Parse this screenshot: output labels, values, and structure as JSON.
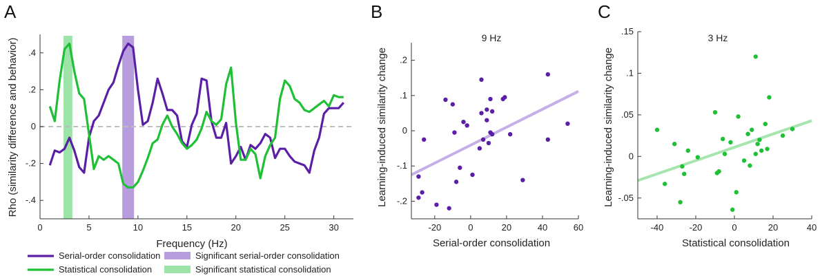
{
  "panels": {
    "a": {
      "letter": "A"
    },
    "b": {
      "letter": "B"
    },
    "c": {
      "letter": "C"
    }
  },
  "colors": {
    "serial": "#5b1fa6",
    "statistical": "#1fbf36",
    "serial_band": "#b79cde",
    "statistical_band": "#9be3a6",
    "serial_fit": "#c5b0e6",
    "statistical_fit": "#a6e6ae",
    "zero_line": "#bdbdbd"
  },
  "chart_data": [
    {
      "type": "line",
      "xlabel": "Frequency (Hz)",
      "ylabel": "Rho (similarity difference and behavior)",
      "xlim": [
        0,
        32
      ],
      "ylim": [
        -0.5,
        0.5
      ],
      "xticks": [
        0,
        5,
        10,
        15,
        20,
        25,
        30
      ],
      "xtick_labels": [
        "0",
        "5",
        "10",
        "15",
        "20",
        "25",
        "30"
      ],
      "yticks": [
        -0.4,
        -0.2,
        0,
        0.2,
        0.4
      ],
      "ytick_labels": [
        "-.4",
        "-.2",
        "0",
        ".2",
        ".4"
      ],
      "zero_line": true,
      "bands": [
        {
          "name": "Significant serial-order consolidation",
          "x0": 8.4,
          "x1": 9.6,
          "color": "#b79cde"
        },
        {
          "name": "Significant statistical consolidation",
          "x0": 2.4,
          "x1": 3.3,
          "color": "#9be3a6"
        }
      ],
      "series": [
        {
          "name": "Serial-order consolidation",
          "color": "#5b1fa6",
          "x": [
            1,
            1.5,
            2,
            2.5,
            3,
            3.5,
            4,
            4.5,
            5,
            5.5,
            6,
            6.5,
            7,
            7.5,
            8,
            8.5,
            9,
            9.5,
            10,
            10.5,
            11,
            11.5,
            12,
            12.5,
            13,
            13.5,
            14,
            14.5,
            15,
            15.5,
            16,
            16.5,
            17,
            17.5,
            18,
            18.5,
            19,
            19.5,
            20,
            20.5,
            21,
            21.5,
            22,
            22.5,
            23,
            23.5,
            24,
            24.5,
            25,
            25.5,
            26,
            26.5,
            27,
            27.5,
            28,
            28.5,
            29,
            29.5,
            30,
            30.5,
            31
          ],
          "y": [
            -0.21,
            -0.13,
            -0.14,
            -0.12,
            -0.06,
            -0.13,
            -0.22,
            -0.25,
            -0.06,
            0.03,
            0.06,
            0.13,
            0.2,
            0.24,
            0.33,
            0.41,
            0.45,
            0.43,
            0.2,
            0.01,
            0.03,
            0.13,
            0.26,
            0.18,
            0.09,
            0.09,
            0.06,
            -0.08,
            -0.11,
            0.01,
            0.07,
            0.26,
            0.25,
            0.03,
            -0.06,
            -0.06,
            0.02,
            -0.2,
            -0.16,
            -0.11,
            -0.18,
            -0.1,
            -0.12,
            -0.09,
            -0.04,
            -0.06,
            -0.17,
            -0.12,
            -0.12,
            -0.16,
            -0.19,
            -0.2,
            -0.21,
            -0.25,
            -0.13,
            -0.06,
            0.07,
            0.1,
            0.1,
            0.1,
            0.13
          ]
        },
        {
          "name": "Statistical consolidation",
          "color": "#1fbf36",
          "x": [
            1,
            1.5,
            2,
            2.5,
            3,
            3.5,
            4,
            4.5,
            5,
            5.5,
            6,
            6.5,
            7,
            7.5,
            8,
            8.5,
            9,
            9.5,
            10,
            10.5,
            11,
            11.5,
            12,
            12.5,
            13,
            13.5,
            14,
            14.5,
            15,
            15.5,
            16,
            16.5,
            17,
            17.5,
            18,
            18.5,
            19,
            19.5,
            20,
            20.5,
            21,
            21.5,
            22,
            22.5,
            23,
            23.5,
            24,
            24.5,
            25,
            25.5,
            26,
            26.5,
            27,
            27.5,
            28,
            28.5,
            29,
            29.5,
            30,
            30.5,
            31
          ],
          "y": [
            0.11,
            0.03,
            0.25,
            0.42,
            0.45,
            0.3,
            0.18,
            0.15,
            -0.04,
            -0.23,
            -0.16,
            -0.18,
            -0.16,
            -0.18,
            -0.2,
            -0.31,
            -0.33,
            -0.33,
            -0.3,
            -0.24,
            -0.17,
            -0.09,
            -0.07,
            0.01,
            0.06,
            0.0,
            -0.04,
            -0.09,
            -0.12,
            -0.1,
            -0.07,
            -0.01,
            0.08,
            0.03,
            0.01,
            0.04,
            0.23,
            0.32,
            0.02,
            -0.18,
            -0.18,
            -0.12,
            -0.15,
            -0.28,
            -0.16,
            -0.1,
            -0.06,
            0.15,
            0.25,
            0.22,
            0.15,
            0.13,
            0.09,
            0.08,
            0.1,
            0.12,
            0.14,
            0.11,
            0.17,
            0.16,
            0.16
          ]
        }
      ]
    },
    {
      "type": "scatter",
      "title": "9 Hz",
      "xlabel": "Serial-order consolidation",
      "ylabel": "Learning-induced similarity change",
      "xlim": [
        -33,
        60
      ],
      "ylim": [
        -0.25,
        0.25
      ],
      "xticks": [
        -20,
        0,
        20,
        40,
        60
      ],
      "xtick_labels": [
        "-20",
        "0",
        "20",
        "40",
        "60"
      ],
      "yticks": [
        -0.2,
        -0.1,
        0,
        0.1,
        0.2
      ],
      "ytick_labels": [
        "-.2",
        "-.1",
        "0",
        ".1",
        ".2"
      ],
      "color": "#5b1fa6",
      "fit_color": "#c5b0e6",
      "fit_line": {
        "x": [
          -33,
          60
        ],
        "y": [
          -0.125,
          0.112
        ]
      },
      "points": {
        "x": [
          -29,
          -27,
          -29,
          -26,
          -19,
          -14,
          -12,
          -10,
          -9,
          -8,
          -6,
          -4,
          -2,
          1,
          5,
          6,
          6,
          7,
          9,
          9,
          10,
          11,
          11,
          12,
          12,
          18,
          19,
          22,
          29,
          43,
          43,
          54
        ],
        "y": [
          -0.13,
          -0.175,
          -0.19,
          -0.025,
          -0.21,
          0.088,
          -0.22,
          0.075,
          -0.005,
          -0.145,
          -0.105,
          0.025,
          0.015,
          -0.125,
          -0.05,
          0.145,
          0.05,
          -0.025,
          0.06,
          0.03,
          -0.035,
          -0.005,
          0.09,
          -0.01,
          0.055,
          0.09,
          0.095,
          -0.01,
          -0.14,
          0.16,
          -0.025,
          0.02
        ]
      }
    },
    {
      "type": "scatter",
      "title": "3 Hz",
      "xlabel": "Statistical consolidation",
      "ylabel": "Learning-induced similarity change",
      "xlim": [
        -50,
        40
      ],
      "ylim": [
        -0.075,
        0.15
      ],
      "xticks": [
        -40,
        -20,
        0,
        20,
        40
      ],
      "xtick_labels": [
        "-40",
        "-20",
        "0",
        "20",
        "40"
      ],
      "yticks": [
        -0.05,
        0,
        0.05,
        0.1,
        0.15
      ],
      "ytick_labels": [
        "-.05",
        "0",
        ".05",
        ".1",
        ".15"
      ],
      "color": "#1fbf36",
      "fit_color": "#a6e6ae",
      "fit_line": {
        "x": [
          -50,
          40
        ],
        "y": [
          -0.029,
          0.043
        ]
      },
      "points": {
        "x": [
          -40,
          -36,
          -31,
          -28,
          -27,
          -26,
          -24,
          -19,
          -10,
          -9,
          -8,
          -6,
          -5,
          -2,
          -1,
          1,
          2,
          5,
          7,
          8,
          9,
          11,
          11,
          12,
          13,
          14,
          16,
          17,
          18,
          25,
          30
        ],
        "y": [
          0.032,
          -0.033,
          0.015,
          -0.055,
          -0.012,
          -0.021,
          0.007,
          -0.001,
          0.053,
          -0.02,
          -0.018,
          0.021,
          0.003,
          0.017,
          -0.064,
          -0.043,
          0.048,
          -0.005,
          0.027,
          -0.011,
          0.032,
          0.12,
          0.003,
          0.015,
          0.02,
          0.007,
          0.039,
          0.009,
          0.071,
          0.025,
          0.033
        ]
      }
    }
  ],
  "legend": {
    "items": [
      {
        "label": "Serial-order consolidation",
        "kind": "line",
        "color": "#5b1fa6"
      },
      {
        "label": "Significant serial-order consolidation",
        "kind": "band",
        "color": "#b79cde"
      },
      {
        "label": "Statistical consolidation",
        "kind": "line",
        "color": "#1fbf36"
      },
      {
        "label": "Significant statistical consolidation",
        "kind": "band",
        "color": "#9be3a6"
      }
    ]
  }
}
